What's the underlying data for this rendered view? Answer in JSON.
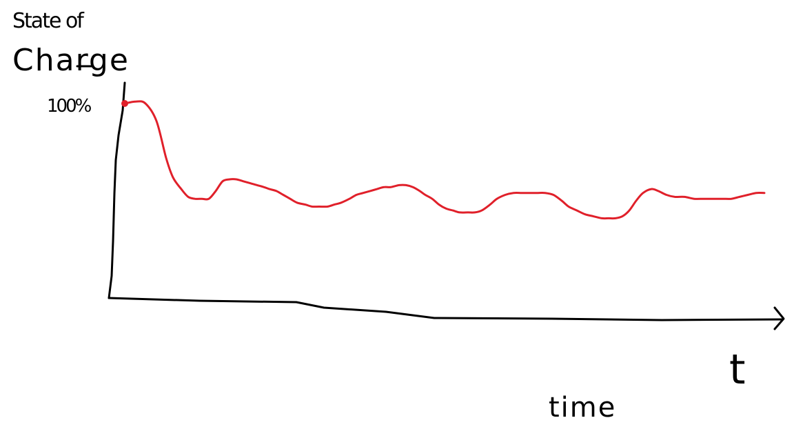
{
  "chart_data": {
    "type": "line",
    "y_axis_label_lines": [
      "State of",
      "Charge"
    ],
    "y_tick_label": "100%",
    "x_axis_symbol": "t",
    "x_axis_label": "time",
    "ylim": [
      0,
      100
    ],
    "grid": false,
    "series": [
      {
        "color": "#e0202a",
        "x": [
          0,
          0.8,
          1.5,
          2.3,
          3.0,
          3.5,
          4.1,
          4.6,
          5.1,
          5.6,
          6.1,
          6.6,
          7.1,
          7.6,
          8.1,
          8.6,
          9.1,
          9.6,
          10.1,
          10.5,
          11.0,
          11.5,
          12.0,
          12.5,
          13.1,
          13.6,
          14.1,
          14.7,
          15.2,
          15.7,
          16.3,
          16.8,
          17.3,
          17.8,
          18.3,
          18.8,
          19.3,
          19.9,
          20.4,
          20.9,
          21.4,
          21.8,
          22.3,
          22.8,
          23.3,
          23.8,
          24.3,
          24.9,
          25.4,
          25.9,
          26.5,
          27.0,
          27.6,
          28.2,
          28.8,
          29.4,
          29.9,
          30.5,
          31.1,
          31.7,
          32.2,
          32.8,
          33.4,
          34.0,
          34.6,
          35.1,
          35.6,
          36.1,
          36.6,
          37.1,
          37.6,
          38.2,
          38.7,
          39.3,
          39.9,
          40.6,
          41.3,
          42.0,
          42.7,
          43.4,
          44.0,
          44.6,
          45.2,
          45.8,
          46.4
        ],
        "values": [
          100,
          101,
          100,
          91,
          72,
          62,
          56,
          52,
          51,
          51,
          51,
          55,
          60,
          61,
          61,
          60,
          59,
          58,
          57,
          56,
          55,
          53,
          51,
          49,
          48,
          47,
          47,
          47,
          48,
          49,
          51,
          53,
          54,
          55,
          56,
          57,
          57,
          58,
          58,
          57,
          55,
          53,
          51,
          48,
          46,
          45,
          44,
          44,
          44,
          45,
          48,
          51,
          53,
          54,
          54,
          54,
          54,
          54,
          53,
          50,
          47,
          45,
          43,
          42,
          41,
          41,
          41,
          42,
          45,
          50,
          54,
          56,
          55,
          53,
          52,
          52,
          51,
          51,
          51,
          51,
          51,
          52,
          53,
          54,
          54
        ]
      }
    ]
  }
}
